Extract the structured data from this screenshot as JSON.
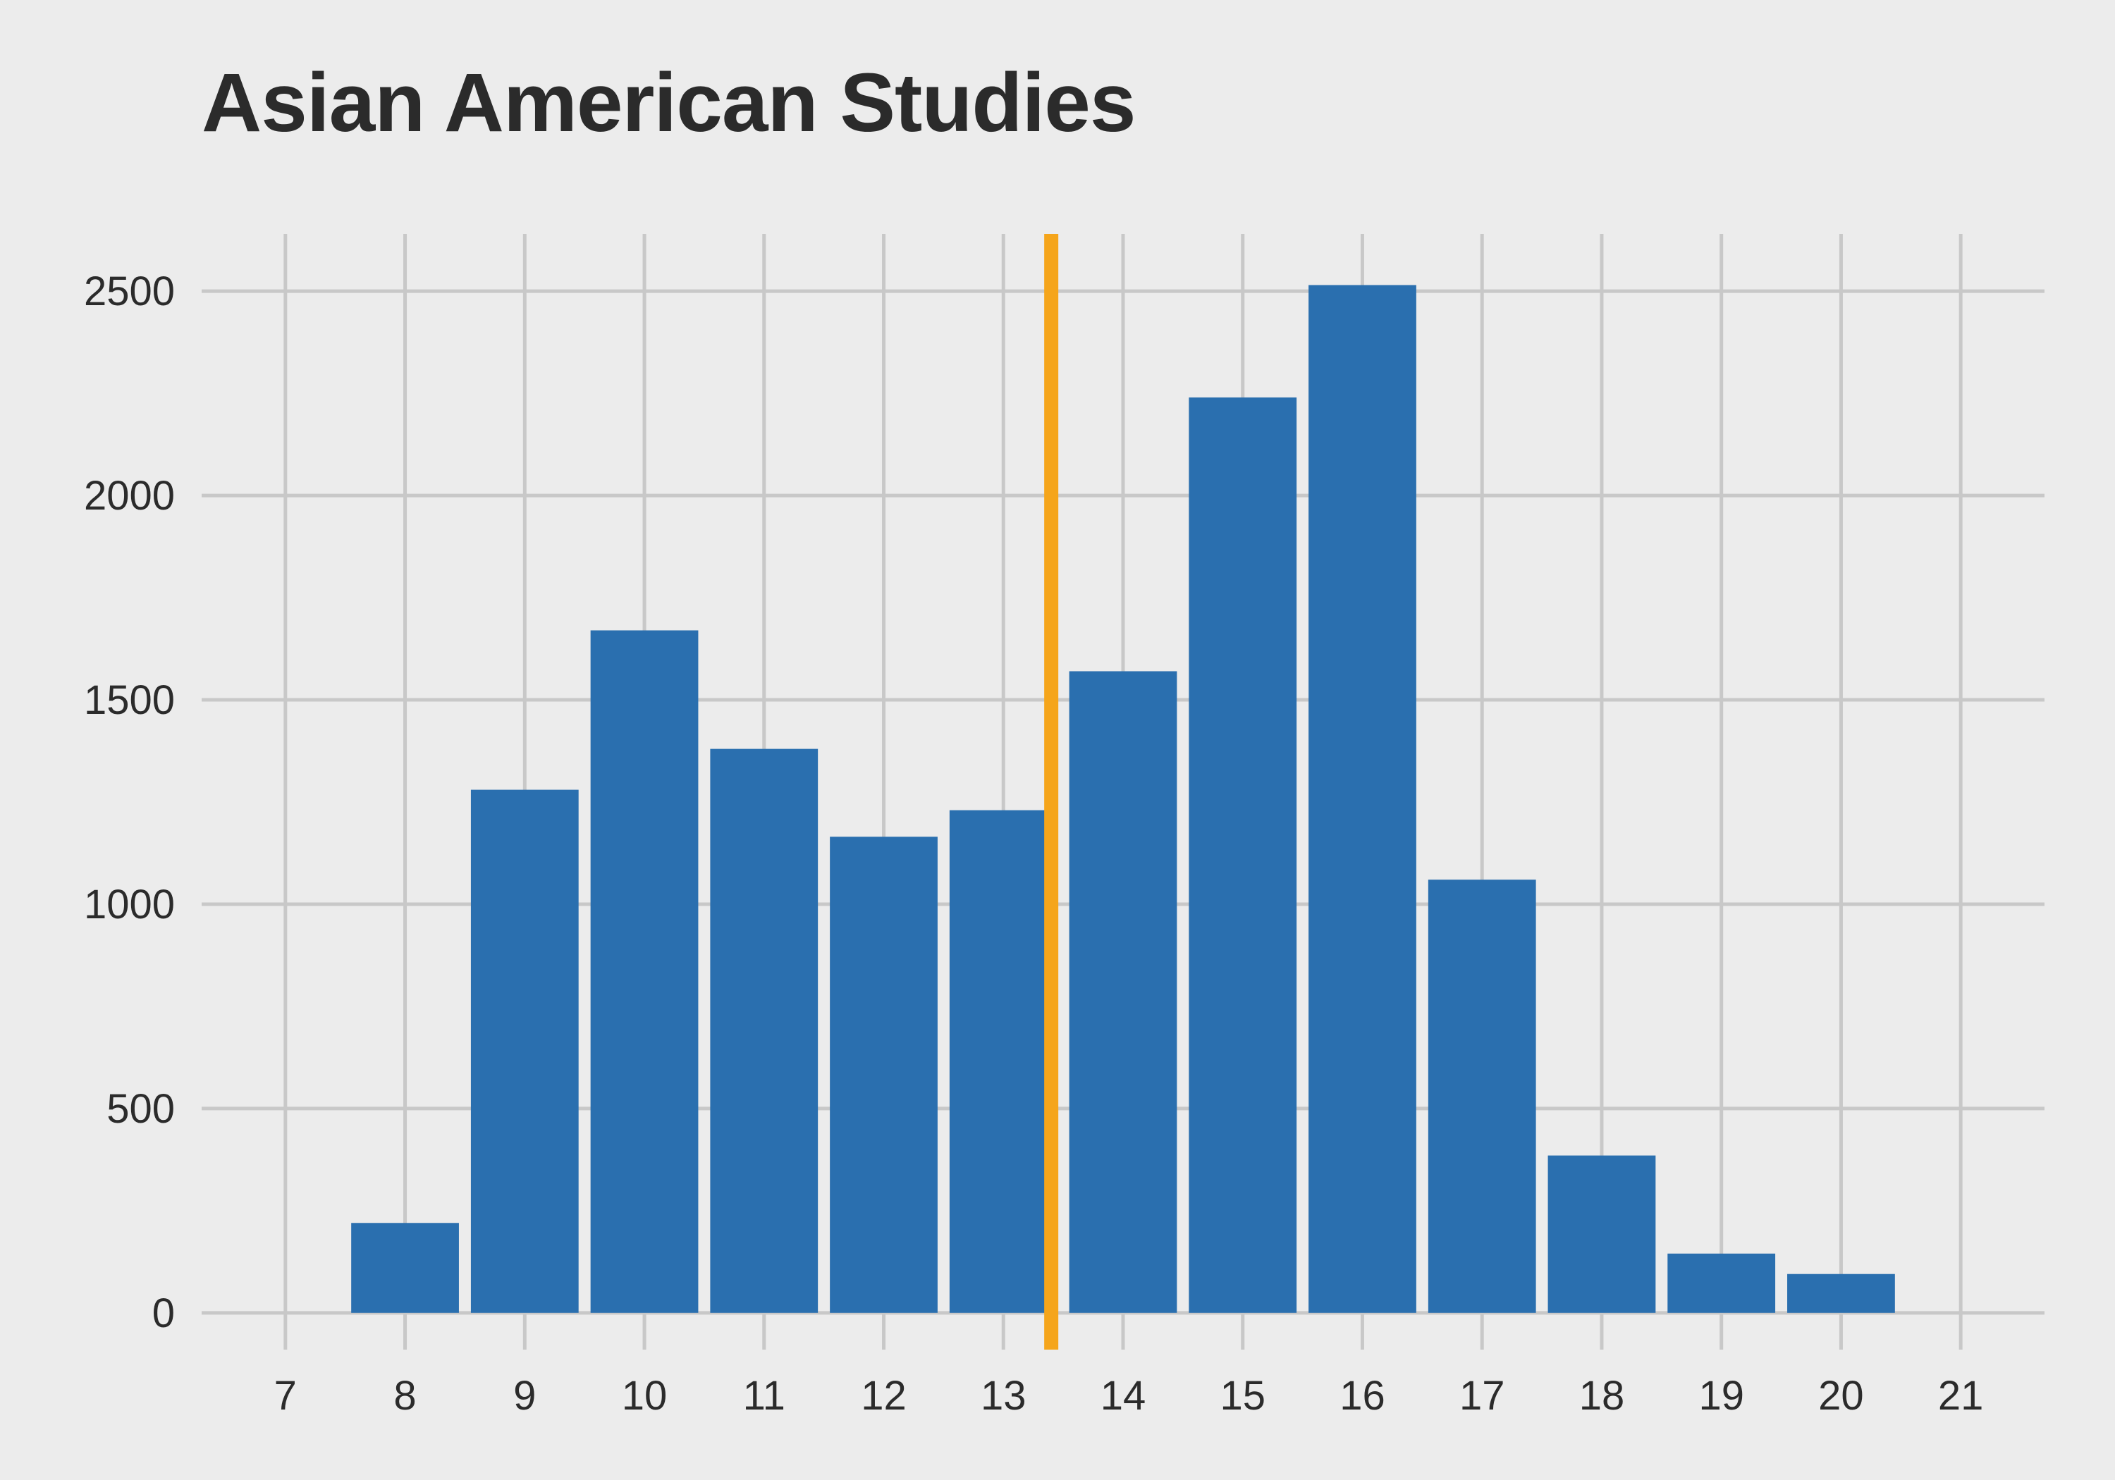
{
  "chart_data": {
    "type": "bar",
    "title": "Asian American Studies",
    "xlabel": "",
    "ylabel": "",
    "x": [
      8,
      9,
      10,
      11,
      12,
      13,
      14,
      15,
      16,
      17,
      18,
      19,
      20
    ],
    "values": [
      220,
      1280,
      1670,
      1380,
      1165,
      1230,
      1570,
      2240,
      2515,
      1060,
      385,
      145,
      95
    ],
    "xlim": [
      6.3,
      21.7
    ],
    "ylim": [
      -90,
      2640
    ],
    "x_ticks": [
      7,
      8,
      9,
      10,
      11,
      12,
      13,
      14,
      15,
      16,
      17,
      18,
      19,
      20,
      21
    ],
    "y_ticks": [
      0,
      500,
      1000,
      1500,
      2000,
      2500
    ],
    "bar_color": "#2a6faf",
    "reference_line": {
      "x": 13.4,
      "color": "#f5a51b"
    },
    "background_color": "#ececec",
    "grid_color": "#c8c8c8",
    "grid": true
  }
}
